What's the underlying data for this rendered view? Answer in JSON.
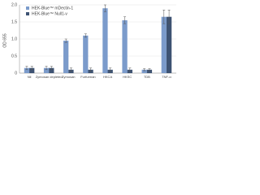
{
  "chart_data": {
    "type": "bar",
    "ylabel": "OD 655",
    "categories": [
      "Nil",
      "Zymosan depleted",
      "Zymosan",
      "Furfurman",
      "HKCA",
      "HKSC",
      "TDB",
      "TNF-α"
    ],
    "series": [
      {
        "name": "HEK-Blue™ mDectin-1",
        "color": "#7b9bcb",
        "values": [
          0.15,
          0.15,
          0.95,
          1.1,
          1.9,
          1.55,
          0.1,
          1.65
        ],
        "errors": [
          0.05,
          0.05,
          0.05,
          0.05,
          0.1,
          0.1,
          0.03,
          0.2
        ]
      },
      {
        "name": "HEK-Blue™ Null1-v",
        "color": "#3e5373",
        "values": [
          0.15,
          0.15,
          0.1,
          0.1,
          0.1,
          0.1,
          0.1,
          1.65
        ],
        "errors": [
          0.05,
          0.05,
          0.05,
          0.05,
          0.05,
          0.05,
          0.03,
          0.2
        ]
      }
    ],
    "ylim": [
      0,
      2.0
    ],
    "yticks": [
      0,
      {
        "value": 0.5,
        "label": "0.5"
      },
      {
        "value": 1.0,
        "label": "1.0"
      },
      {
        "value": 1.5,
        "label": "1.5"
      },
      {
        "value": 2.0,
        "label": "2.0"
      }
    ],
    "grid": true,
    "legend": "upper-left"
  }
}
